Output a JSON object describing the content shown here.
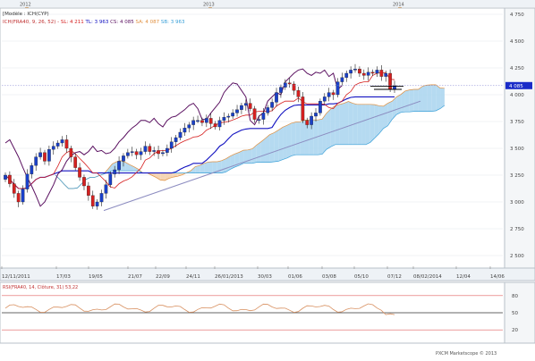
{
  "header": {
    "indicator_label": "[Modèle : ICH(CYP)",
    "legend_prefix": "ICH(FRA40, 9, 26, 52) -",
    "legend_items": [
      {
        "text": "SL: 4 211",
        "color": "#d62020"
      },
      {
        "text": "TL: 3 963",
        "color": "#1010c0"
      },
      {
        "text": "CS: 4 085",
        "color": "#5a1060"
      },
      {
        "text": "SA: 4 087",
        "color": "#e09040"
      },
      {
        "text": "SB: 3 963",
        "color": "#3aa0d8"
      }
    ],
    "price_tag": "4 085"
  },
  "timeline_years": [
    "2012",
    "2013",
    "2014"
  ],
  "x_axis_labels": [
    "12/11/2011",
    "17/03",
    "19/05",
    "21/07",
    "22/09",
    "24/11",
    "26/01/2013",
    "30/03",
    "01/06",
    "03/08",
    "05/10",
    "07/12",
    "08/02/2014",
    "12/04",
    "14/06"
  ],
  "y_axis_labels": [
    "4 750",
    "4 500",
    "4 250",
    "4 000",
    "3 750",
    "3 500",
    "3 250",
    "3 000",
    "2 750",
    "2 500"
  ],
  "rsi_panel": {
    "label": "RSI(FRA40, 14, Clôture, 31) 53,22",
    "levels": [
      "80",
      "50",
      "20"
    ]
  },
  "copyright": "PXCM Marketscope © 2013",
  "colors": {
    "tenkan": "#d62020",
    "kijun": "#1010c0",
    "chikou": "#5a1060",
    "cloud_bull": "#a8d4ee",
    "cloud_bear": "#f5cfa8",
    "senkou_a": "#e09040",
    "senkou_b": "#3aa0d8",
    "candle_up": "#1a40c8",
    "candle_down": "#d62020",
    "trendline": "#8c8cc0",
    "rsi": "#d89060"
  },
  "chart_data": {
    "type": "candlestick-ichimoku",
    "symbol": "FRA40",
    "periodicity": "weekly",
    "ylim": [
      2400,
      4800
    ],
    "series": [
      {
        "name": "SL",
        "last": 4211
      },
      {
        "name": "TL",
        "last": 3963
      },
      {
        "name": "CS",
        "last": 4085
      },
      {
        "name": "SA",
        "last": 4087
      },
      {
        "name": "SB",
        "last": 3963
      }
    ],
    "close": [
      3250,
      3170,
      3080,
      3000,
      3120,
      3260,
      3340,
      3420,
      3460,
      3380,
      3490,
      3520,
      3550,
      3580,
      3500,
      3420,
      3320,
      3230,
      3150,
      3060,
      2960,
      3000,
      3080,
      3160,
      3260,
      3300,
      3380,
      3430,
      3460,
      3470,
      3440,
      3470,
      3520,
      3470,
      3480,
      3450,
      3460,
      3500,
      3560,
      3600,
      3650,
      3690,
      3720,
      3760,
      3760,
      3740,
      3780,
      3730,
      3700,
      3760,
      3790,
      3800,
      3830,
      3860,
      3900,
      3920,
      3870,
      3770,
      3770,
      3830,
      3880,
      3930,
      4020,
      4070,
      4110,
      4100,
      4040,
      3980,
      3760,
      3720,
      3800,
      3830,
      3940,
      3980,
      4020,
      4000,
      4120,
      4160,
      4200,
      4230,
      4240,
      4200,
      4180,
      4210,
      4200,
      4230,
      4170,
      4200,
      4050,
      4085
    ]
  }
}
